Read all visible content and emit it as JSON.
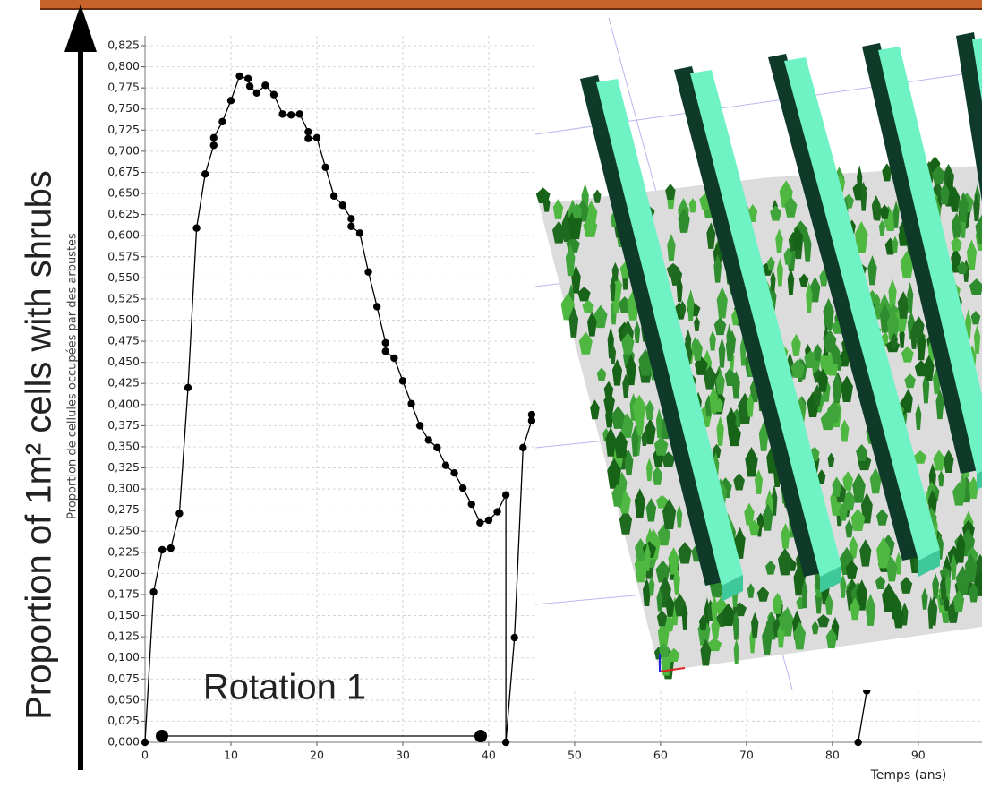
{
  "chart_data": {
    "type": "line",
    "y_label": "Proportion de cellules occupées par des arbustes",
    "x_label": "Temps (ans)",
    "annotations": {
      "y_title": "Proportion of 1m² cells with shrubs",
      "rotation": "Rotation 1"
    },
    "x": [
      0,
      1,
      2,
      3,
      4,
      5,
      6,
      7,
      8,
      8,
      9,
      10,
      11,
      12,
      12.2,
      13,
      14,
      15,
      16,
      17,
      18,
      19,
      19,
      20,
      21,
      22,
      23,
      24,
      24,
      25,
      26,
      27,
      28,
      28,
      29,
      30,
      31,
      32,
      33,
      34,
      35,
      36,
      37,
      38,
      39,
      40,
      41,
      42,
      42,
      43,
      44,
      45,
      45,
      null,
      83,
      84
    ],
    "values": [
      0,
      0.178,
      0.228,
      0.23,
      0.271,
      0.42,
      0.609,
      0.673,
      0.707,
      0.716,
      0.735,
      0.76,
      0.789,
      0.786,
      0.777,
      0.769,
      0.778,
      0.767,
      0.744,
      0.743,
      0.744,
      0.723,
      0.715,
      0.716,
      0.681,
      0.647,
      0.636,
      0.62,
      0.611,
      0.603,
      0.557,
      0.516,
      0.473,
      0.463,
      0.455,
      0.428,
      0.401,
      0.375,
      0.358,
      0.349,
      0.328,
      0.319,
      0.301,
      0.282,
      0.26,
      0.263,
      0.273,
      0.293,
      0,
      0.124,
      0.349,
      0.381,
      0.388,
      null,
      0,
      0.061
    ],
    "color": "#000000",
    "grid": true,
    "xlim": [
      0,
      97
    ],
    "ylim": [
      0,
      0.825
    ],
    "xticks": [
      0,
      10,
      20,
      30,
      40,
      50,
      60,
      70,
      80,
      90
    ],
    "yticks": [
      {
        "value": 0,
        "label": "0,000"
      },
      {
        "value": 0.025,
        "label": "0,025"
      },
      {
        "value": 0.05,
        "label": "0,050"
      },
      {
        "value": 0.075,
        "label": "0,075"
      },
      {
        "value": 0.1,
        "label": "0,100"
      },
      {
        "value": 0.125,
        "label": "0,125"
      },
      {
        "value": 0.15,
        "label": "0,150"
      },
      {
        "value": 0.175,
        "label": "0,175"
      },
      {
        "value": 0.2,
        "label": "0,200"
      },
      {
        "value": 0.225,
        "label": "0,225"
      },
      {
        "value": 0.25,
        "label": "0,250"
      },
      {
        "value": 0.275,
        "label": "0,275"
      },
      {
        "value": 0.3,
        "label": "0,300"
      },
      {
        "value": 0.325,
        "label": "0,325"
      },
      {
        "value": 0.35,
        "label": "0,350"
      },
      {
        "value": 0.375,
        "label": "0,375"
      },
      {
        "value": 0.4,
        "label": "0,400"
      },
      {
        "value": 0.425,
        "label": "0,425"
      },
      {
        "value": 0.45,
        "label": "0,450"
      },
      {
        "value": 0.475,
        "label": "0,475"
      },
      {
        "value": 0.5,
        "label": "0,500"
      },
      {
        "value": 0.525,
        "label": "0,525"
      },
      {
        "value": 0.55,
        "label": "0,550"
      },
      {
        "value": 0.575,
        "label": "0,575"
      },
      {
        "value": 0.6,
        "label": "0,600"
      },
      {
        "value": 0.625,
        "label": "0,625"
      },
      {
        "value": 0.65,
        "label": "0,650"
      },
      {
        "value": 0.675,
        "label": "0,675"
      },
      {
        "value": 0.7,
        "label": "0,700"
      },
      {
        "value": 0.725,
        "label": "0,725"
      },
      {
        "value": 0.75,
        "label": "0,750"
      },
      {
        "value": 0.775,
        "label": "0,775"
      },
      {
        "value": 0.8,
        "label": "0,800"
      },
      {
        "value": 0.825,
        "label": "0,825"
      }
    ]
  }
}
